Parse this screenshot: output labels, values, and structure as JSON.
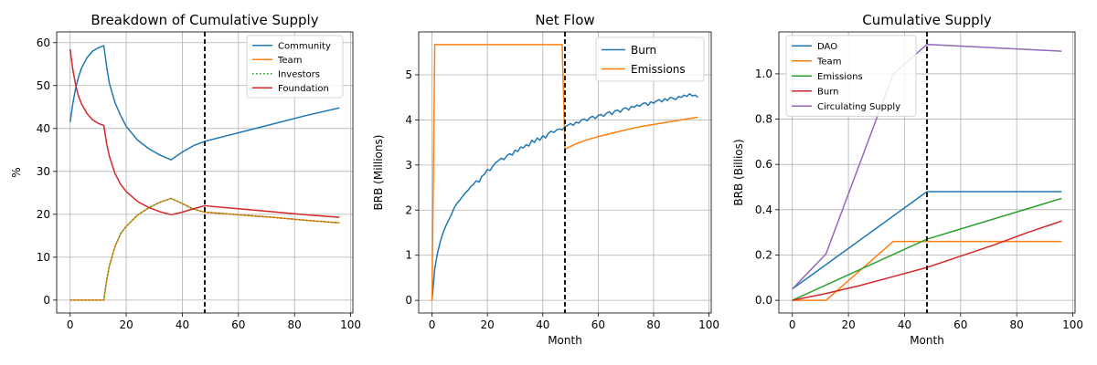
{
  "chart_data": [
    {
      "type": "line",
      "title": "Breakdown of Cumulative Supply",
      "xlabel": "",
      "ylabel": "%",
      "xlim": [
        -4.8,
        100.8
      ],
      "ylim": [
        -3,
        62.5
      ],
      "xticks": [
        0,
        20,
        40,
        60,
        80,
        100
      ],
      "yticks": [
        0,
        10,
        20,
        30,
        40,
        50,
        60
      ],
      "grid": true,
      "legend": "top-right",
      "vline_x": 48,
      "series": [
        {
          "name": "Community",
          "color": "#1f77b4",
          "dash": "solid",
          "x": [
            0,
            1,
            2,
            3,
            4,
            6,
            8,
            10,
            12,
            13,
            14,
            16,
            18,
            20,
            24,
            28,
            32,
            36,
            40,
            44,
            48,
            60,
            72,
            84,
            96
          ],
          "y": [
            41.5,
            46.0,
            49.5,
            52.0,
            54.0,
            56.5,
            58.0,
            58.8,
            59.3,
            54.5,
            50.5,
            46.0,
            43.0,
            40.5,
            37.3,
            35.3,
            33.8,
            32.7,
            34.5,
            36.0,
            37.0,
            39.0,
            41.0,
            43.0,
            44.8
          ]
        },
        {
          "name": "Team",
          "color": "#ff7f0e",
          "dash": "solid",
          "x": [
            0,
            12,
            13,
            14,
            16,
            18,
            20,
            24,
            28,
            32,
            36,
            40,
            44,
            48,
            60,
            72,
            84,
            96
          ],
          "y": [
            0,
            0,
            4.5,
            8.0,
            12.5,
            15.5,
            17.2,
            19.8,
            21.5,
            22.8,
            23.7,
            22.5,
            21.2,
            20.5,
            19.9,
            19.3,
            18.6,
            18.0
          ]
        },
        {
          "name": "Investors",
          "color": "#2ca02c",
          "dash": "dotted",
          "x": [
            0,
            12,
            13,
            14,
            16,
            18,
            20,
            24,
            28,
            32,
            36,
            40,
            44,
            48,
            60,
            72,
            84,
            96
          ],
          "y": [
            0,
            0,
            4.5,
            8.0,
            12.5,
            15.5,
            17.2,
            19.8,
            21.5,
            22.8,
            23.7,
            22.5,
            21.2,
            20.5,
            19.9,
            19.3,
            18.6,
            18.0
          ]
        },
        {
          "name": "Foundation",
          "color": "#d62728",
          "dash": "solid",
          "x": [
            0,
            1,
            2,
            3,
            4,
            6,
            8,
            10,
            12,
            13,
            14,
            16,
            18,
            20,
            24,
            28,
            32,
            36,
            40,
            44,
            48,
            60,
            72,
            84,
            96
          ],
          "y": [
            58.5,
            53.5,
            50.0,
            47.5,
            45.8,
            43.5,
            42.0,
            41.2,
            40.7,
            36.5,
            33.5,
            29.5,
            27.0,
            25.3,
            23.0,
            21.6,
            20.6,
            19.9,
            20.5,
            21.3,
            22.0,
            21.3,
            20.6,
            19.9,
            19.3
          ]
        }
      ]
    },
    {
      "type": "line",
      "title": "Net Flow",
      "xlabel": "Month",
      "ylabel": "BRB (Millions)",
      "xlim": [
        -4.8,
        100.8
      ],
      "ylim": [
        -0.28,
        5.95
      ],
      "xticks": [
        0,
        20,
        40,
        60,
        80,
        100
      ],
      "yticks": [
        0,
        1,
        2,
        3,
        4,
        5
      ],
      "grid": true,
      "legend": "top-right",
      "vline_x": 48,
      "series": [
        {
          "name": "Burn",
          "color": "#1f77b4",
          "dash": "solid",
          "x": [
            0,
            1,
            2,
            3,
            4,
            5,
            6,
            7,
            8,
            9,
            10,
            11,
            12,
            13,
            14,
            15,
            16,
            17,
            18,
            19,
            20,
            21,
            22,
            23,
            24,
            25,
            26,
            27,
            28,
            29,
            30,
            31,
            32,
            33,
            34,
            35,
            36,
            37,
            38,
            39,
            40,
            41,
            42,
            43,
            44,
            45,
            46,
            47,
            48,
            49,
            50,
            51,
            52,
            53,
            54,
            55,
            56,
            57,
            58,
            59,
            60,
            61,
            62,
            63,
            64,
            65,
            66,
            67,
            68,
            69,
            70,
            71,
            72,
            73,
            74,
            75,
            76,
            77,
            78,
            79,
            80,
            81,
            82,
            83,
            84,
            85,
            86,
            87,
            88,
            89,
            90,
            91,
            92,
            93,
            94,
            95,
            96
          ],
          "y": [
            0.0,
            0.7,
            1.05,
            1.3,
            1.5,
            1.65,
            1.78,
            1.9,
            2.05,
            2.15,
            2.22,
            2.3,
            2.38,
            2.44,
            2.52,
            2.58,
            2.65,
            2.62,
            2.75,
            2.8,
            2.9,
            2.88,
            2.98,
            3.05,
            3.1,
            3.15,
            3.12,
            3.2,
            3.25,
            3.22,
            3.33,
            3.3,
            3.4,
            3.38,
            3.45,
            3.42,
            3.55,
            3.5,
            3.6,
            3.55,
            3.65,
            3.6,
            3.7,
            3.75,
            3.72,
            3.78,
            3.8,
            3.78,
            3.85,
            3.88,
            3.92,
            3.88,
            3.95,
            3.93,
            4.0,
            4.02,
            3.98,
            4.05,
            4.08,
            4.03,
            4.1,
            4.12,
            4.08,
            4.15,
            4.18,
            4.12,
            4.2,
            4.22,
            4.17,
            4.25,
            4.27,
            4.22,
            4.3,
            4.28,
            4.33,
            4.3,
            4.36,
            4.38,
            4.32,
            4.4,
            4.37,
            4.42,
            4.45,
            4.4,
            4.47,
            4.43,
            4.5,
            4.48,
            4.45,
            4.52,
            4.5,
            4.55,
            4.52,
            4.58,
            4.53,
            4.55,
            4.5
          ]
        },
        {
          "name": "Emissions",
          "color": "#ff7f0e",
          "dash": "solid",
          "x": [
            0,
            1,
            47,
            48,
            52,
            56,
            60,
            64,
            68,
            72,
            76,
            80,
            84,
            88,
            92,
            96
          ],
          "y": [
            0.0,
            5.67,
            5.67,
            3.35,
            3.47,
            3.56,
            3.63,
            3.69,
            3.75,
            3.81,
            3.86,
            3.9,
            3.94,
            3.98,
            4.02,
            4.06
          ]
        }
      ]
    },
    {
      "type": "line",
      "title": "Cumulative Supply",
      "xlabel": "Month",
      "ylabel": "BRB (Billios)",
      "xlim": [
        -4.8,
        100.8
      ],
      "ylim": [
        -0.056,
        1.185
      ],
      "xticks": [
        0,
        20,
        40,
        60,
        80,
        100
      ],
      "yticks": [
        0.0,
        0.2,
        0.4,
        0.6,
        0.8,
        1.0
      ],
      "ytick_labels": [
        "0.0",
        "0.2",
        "0.4",
        "0.6",
        "0.8",
        "1.0"
      ],
      "grid": true,
      "legend": "top-left",
      "vline_x": 48,
      "series": [
        {
          "name": "DAO",
          "color": "#1f77b4",
          "dash": "solid",
          "x": [
            0,
            48,
            96
          ],
          "y": [
            0.05,
            0.48,
            0.48
          ]
        },
        {
          "name": "Team",
          "color": "#ff7f0e",
          "dash": "solid",
          "x": [
            0,
            12,
            36,
            48,
            96
          ],
          "y": [
            0.0,
            0.0,
            0.26,
            0.26,
            0.26
          ]
        },
        {
          "name": "Emissions",
          "color": "#2ca02c",
          "dash": "solid",
          "x": [
            0,
            48,
            96
          ],
          "y": [
            0.0,
            0.27,
            0.45
          ]
        },
        {
          "name": "Burn",
          "color": "#d62728",
          "dash": "solid",
          "x": [
            0,
            12,
            24,
            36,
            48,
            60,
            72,
            84,
            96
          ],
          "y": [
            0.0,
            0.03,
            0.065,
            0.105,
            0.145,
            0.195,
            0.245,
            0.3,
            0.35
          ]
        },
        {
          "name": "Circulating Supply",
          "color": "#9467bd",
          "dash": "solid",
          "x": [
            0,
            12,
            36,
            48,
            96
          ],
          "y": [
            0.05,
            0.205,
            1.0,
            1.13,
            1.1
          ]
        }
      ]
    }
  ]
}
